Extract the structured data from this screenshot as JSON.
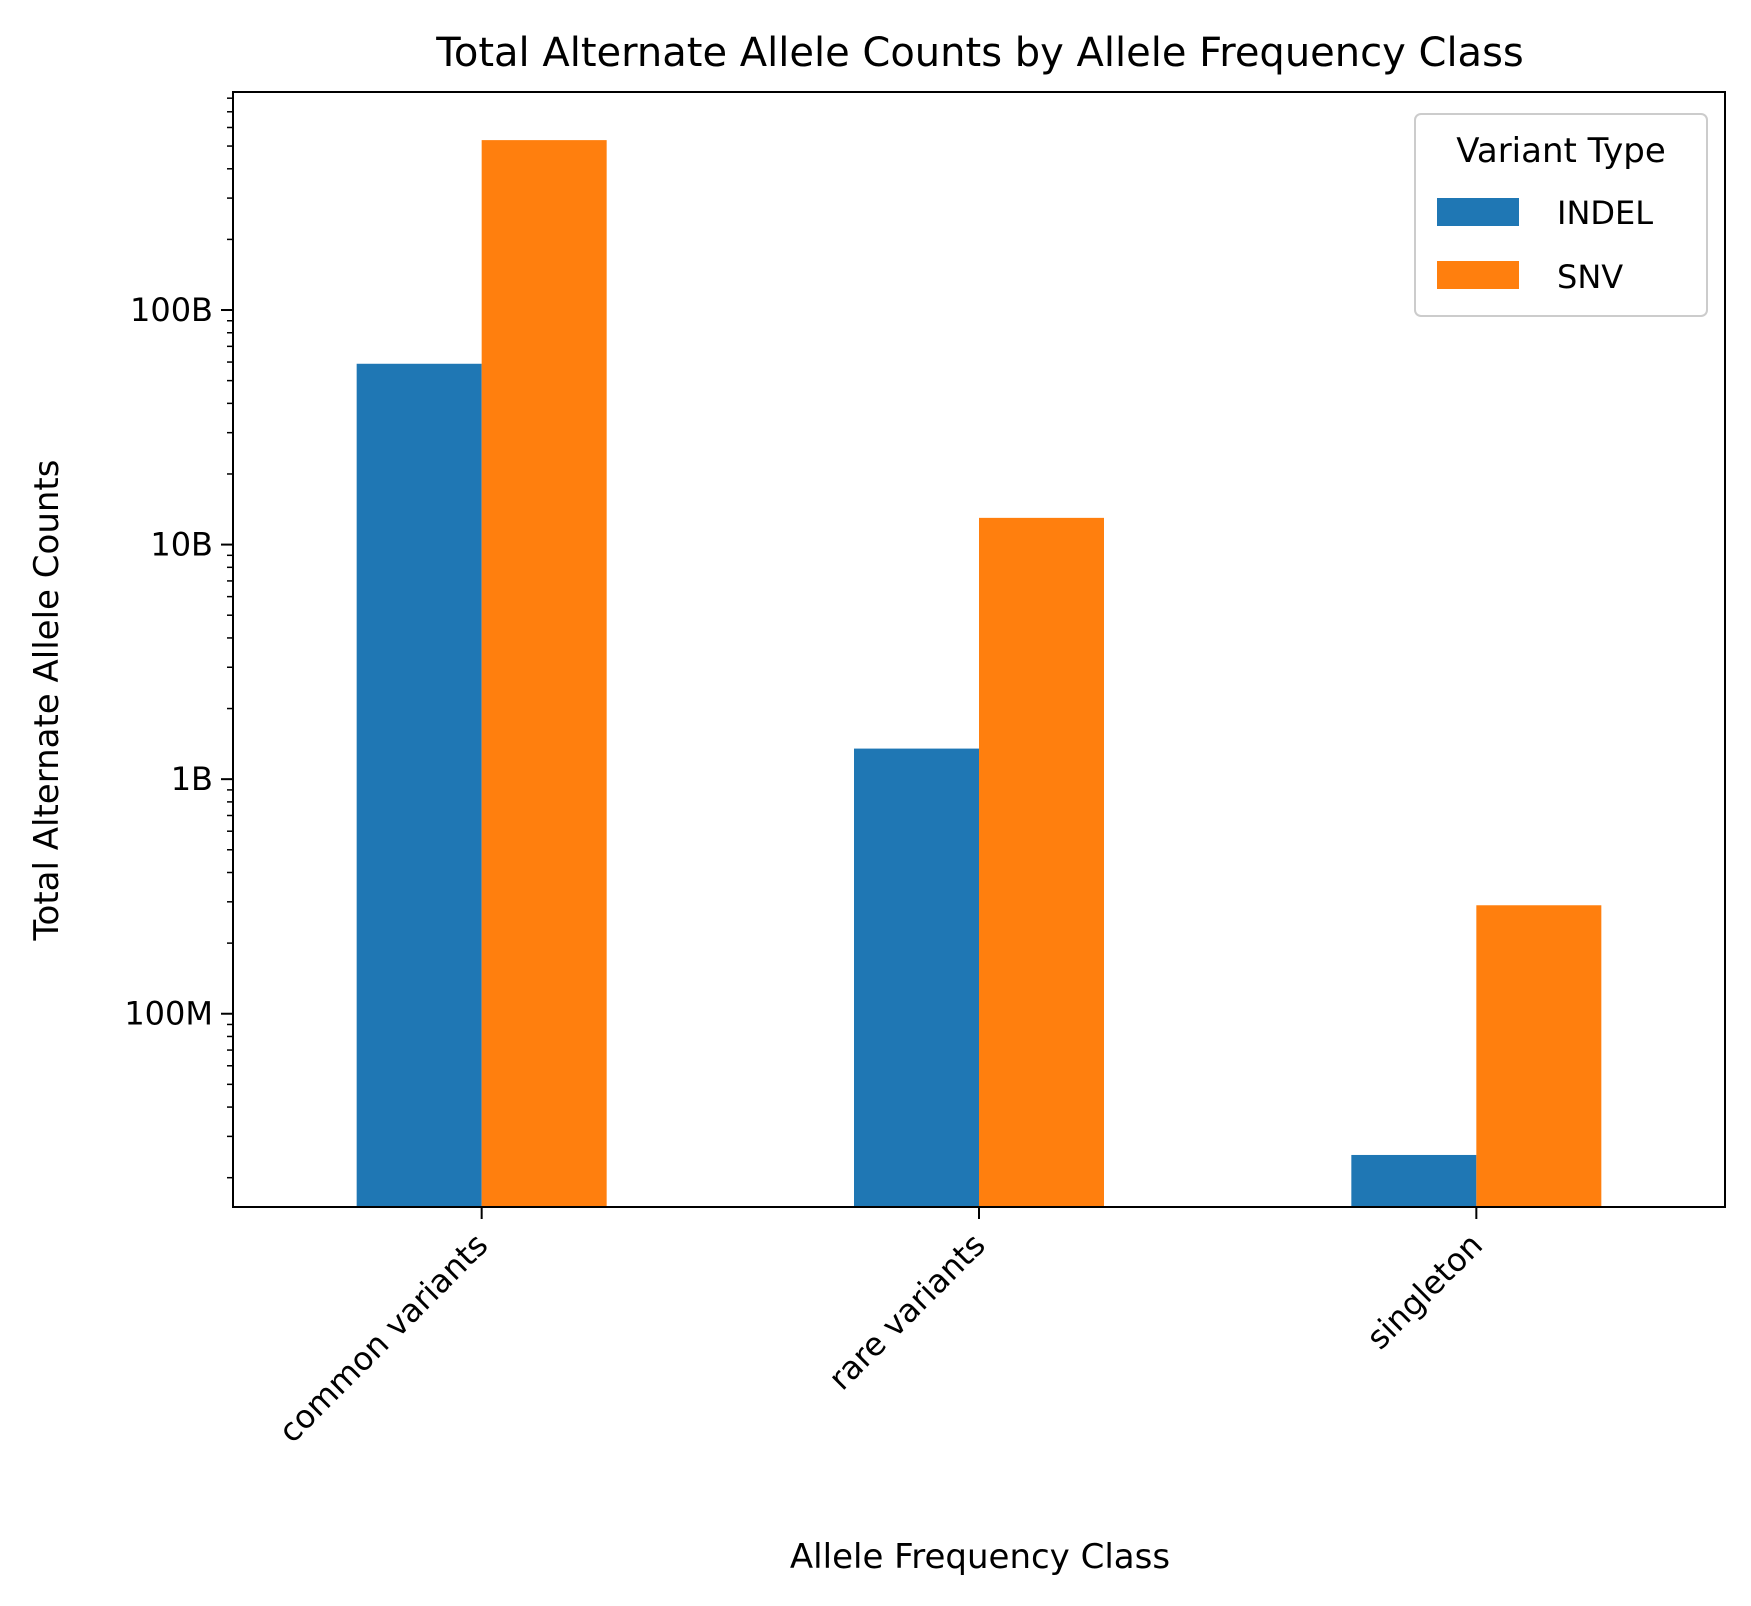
{
  "chart_data": {
    "type": "bar",
    "title": "Total Alternate Allele Counts by Allele Frequency Class",
    "xlabel": "Allele Frequency Class",
    "ylabel": "Total Alternate Allele Counts",
    "categories": [
      "common variants",
      "rare variants",
      "singleton"
    ],
    "series": [
      {
        "name": "INDEL",
        "color": "#1f77b4",
        "values": [
          59000000000,
          1350000000,
          25000000
        ]
      },
      {
        "name": "SNV",
        "color": "#ff7f0e",
        "values": [
          530000000000,
          13000000000,
          290000000
        ]
      }
    ],
    "y_scale": "log",
    "ylim": [
      15000000,
      850000000000
    ],
    "y_ticks": [
      {
        "value": 100000000,
        "label": "100M"
      },
      {
        "value": 1000000000,
        "label": "1B"
      },
      {
        "value": 10000000000,
        "label": "10B"
      },
      {
        "value": 100000000000,
        "label": "100B"
      }
    ],
    "legend": {
      "title": "Variant Type",
      "placement": "top-right"
    },
    "grid": false,
    "x_tick_rotation": -45
  }
}
